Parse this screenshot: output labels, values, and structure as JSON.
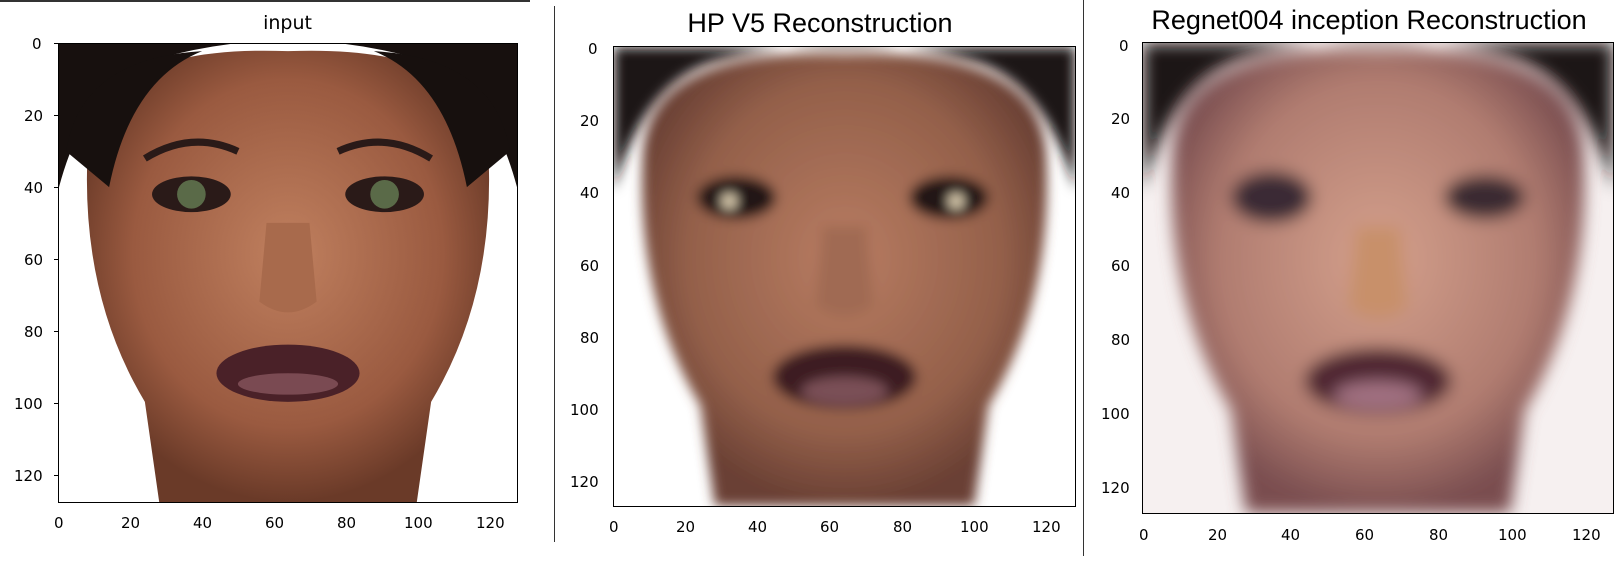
{
  "panels": [
    {
      "title": "input",
      "yticks": [
        "0",
        "20",
        "40",
        "60",
        "80",
        "100",
        "120"
      ],
      "xticks": [
        "0",
        "20",
        "40",
        "60",
        "80",
        "100",
        "120"
      ]
    },
    {
      "title": "HP V5 Reconstruction",
      "yticks": [
        "0",
        "20",
        "40",
        "60",
        "80",
        "100",
        "120"
      ],
      "xticks": [
        "0",
        "20",
        "40",
        "60",
        "80",
        "100",
        "120"
      ]
    },
    {
      "title": "Regnet004 inception Reconstruction",
      "yticks": [
        "0",
        "20",
        "40",
        "60",
        "80",
        "100",
        "120"
      ],
      "xticks": [
        "0",
        "20",
        "40",
        "60",
        "80",
        "100",
        "120"
      ]
    }
  ],
  "colors": {
    "skin": "#a0624a",
    "hair": "#17100e",
    "lips": "#4a2128",
    "background": "#ffffff"
  }
}
